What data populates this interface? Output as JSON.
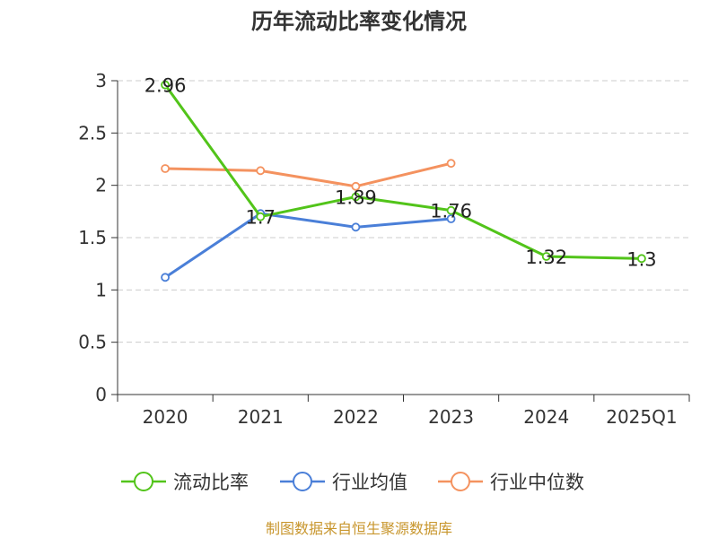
{
  "chart_data": {
    "type": "line",
    "title": "历年流动比率变化情况",
    "categories": [
      "2020",
      "2021",
      "2022",
      "2023",
      "2024",
      "2025Q1"
    ],
    "ylim": [
      0,
      3
    ],
    "yticks": [
      "0",
      "0.5",
      "1",
      "1.5",
      "2",
      "2.5",
      "3"
    ],
    "ytick_values": [
      0,
      0.5,
      1,
      1.5,
      2,
      2.5,
      3
    ],
    "grid": true,
    "legend_position": "bottom",
    "series": [
      {
        "name": "流动比率",
        "color": "#52c41a",
        "values": [
          2.96,
          1.7,
          1.89,
          1.76,
          1.32,
          1.3
        ],
        "labels": [
          "2.96",
          "1.7",
          "1.89",
          "1.76",
          "1.32",
          "1.3"
        ]
      },
      {
        "name": "行业均值",
        "color": "#4a7fd8",
        "values": [
          1.12,
          1.73,
          1.6,
          1.68,
          null,
          null
        ]
      },
      {
        "name": "行业中位数",
        "color": "#f4925f",
        "values": [
          2.16,
          2.14,
          1.99,
          2.21,
          null,
          null
        ]
      }
    ]
  },
  "footer": {
    "source": "制图数据来自恒生聚源数据库",
    "source_color": "#c8962d"
  }
}
